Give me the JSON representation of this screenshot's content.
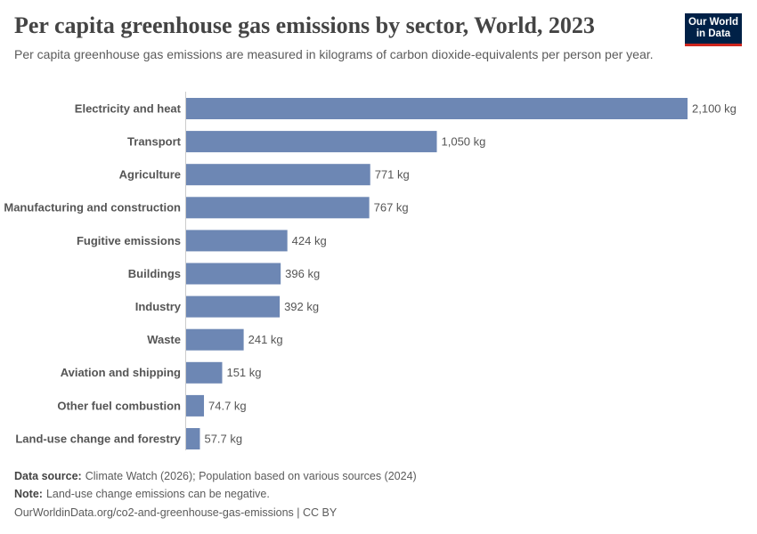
{
  "chart_data": {
    "type": "bar",
    "orientation": "horizontal",
    "title": "Per capita greenhouse gas emissions by sector, World, 2023",
    "subtitle": "Per capita greenhouse gas emissions are measured in kilograms of carbon dioxide-equivalents per person per year.",
    "categories": [
      "Electricity and heat",
      "Transport",
      "Agriculture",
      "Manufacturing and construction",
      "Fugitive emissions",
      "Buildings",
      "Industry",
      "Waste",
      "Aviation and shipping",
      "Other fuel combustion",
      "Land-use change and forestry"
    ],
    "values": [
      2100,
      1050,
      771,
      767,
      424,
      396,
      392,
      241,
      151,
      74.7,
      57.7
    ],
    "value_labels": [
      "2,100 kg",
      "1,050 kg",
      "771 kg",
      "767 kg",
      "424 kg",
      "396 kg",
      "392 kg",
      "241 kg",
      "151 kg",
      "74.7 kg",
      "57.7 kg"
    ],
    "color": "#6d87b4"
  },
  "footer": {
    "source_label": "Data source:",
    "source": "Climate Watch (2026); Population based on various sources (2024)",
    "note_label": "Note:",
    "note": "Land-use change emissions can be negative.",
    "url": "OurWorldinData.org/co2-and-greenhouse-gas-emissions | CC BY"
  },
  "logo": {
    "line1": "Our World",
    "line2": "in Data"
  }
}
